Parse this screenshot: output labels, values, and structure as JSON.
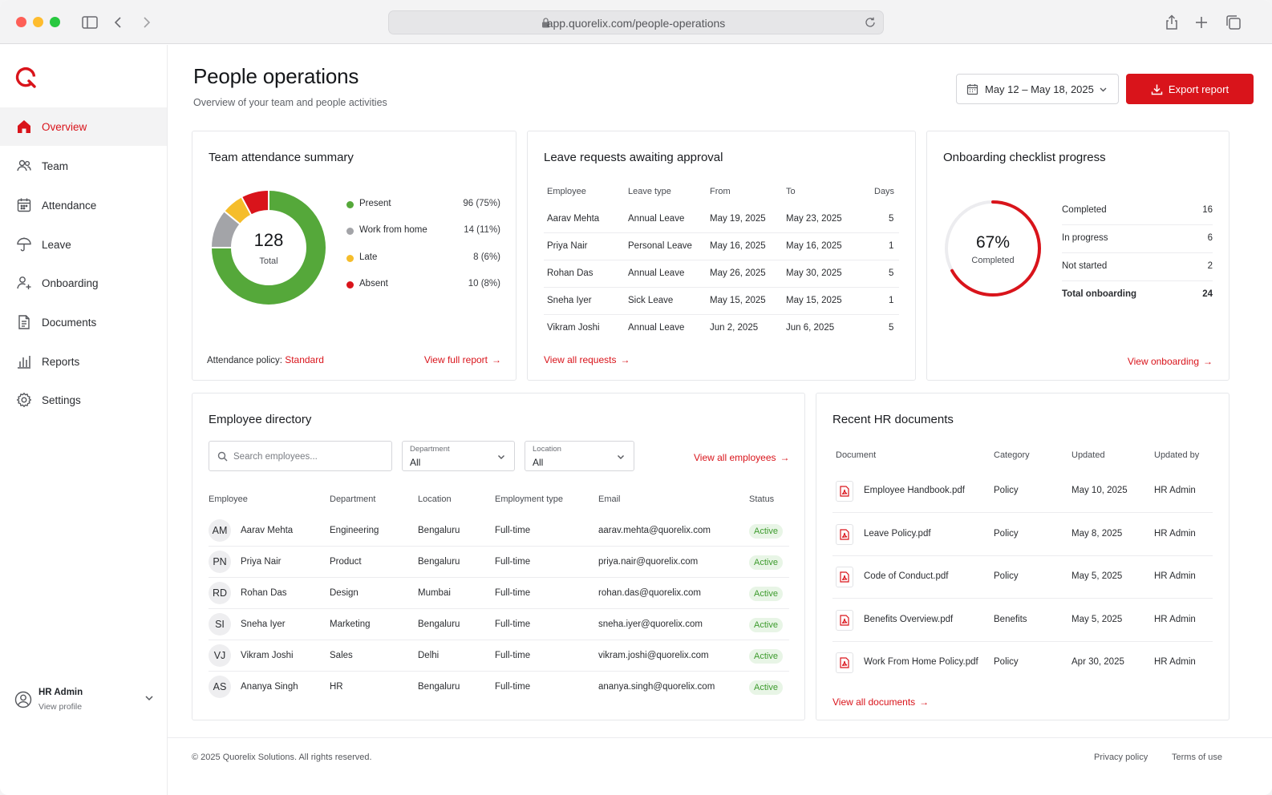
{
  "browser": {
    "url": "app.quorelix.com/people-operations"
  },
  "sidebar": {
    "items": [
      {
        "label": "Overview",
        "icon": "home-icon"
      },
      {
        "label": "Team",
        "icon": "users-icon"
      },
      {
        "label": "Attendance",
        "icon": "calendar-icon"
      },
      {
        "label": "Leave",
        "icon": "umbrella-icon"
      },
      {
        "label": "Onboarding",
        "icon": "user-plus-icon"
      },
      {
        "label": "Documents",
        "icon": "document-icon"
      },
      {
        "label": "Reports",
        "icon": "bar-chart-icon"
      },
      {
        "label": "Settings",
        "icon": "gear-icon"
      }
    ],
    "profile": {
      "name": "HR Admin",
      "sub": "View profile"
    }
  },
  "header": {
    "title": "People operations",
    "subtitle": "Overview of your team and people activities",
    "date_range": "May 12 – May 18, 2025",
    "export_label": "Export report"
  },
  "attendance": {
    "title": "Team attendance summary",
    "total_value": "128",
    "total_label": "Total",
    "legend": [
      {
        "name": "Present",
        "value": "96 (75%)",
        "color": "#55a83a",
        "count": 96
      },
      {
        "name": "Work from home",
        "value": "14 (11%)",
        "color": "#a3a4a8",
        "count": 14
      },
      {
        "name": "Late",
        "value": "8 (6%)",
        "color": "#f5bd2b",
        "count": 8
      },
      {
        "name": "Absent",
        "value": "10 (8%)",
        "color": "#d9141b",
        "count": 10
      }
    ],
    "policy_label": "Attendance policy:",
    "policy_value": "Standard",
    "link": "View full report"
  },
  "leave": {
    "title": "Leave requests awaiting approval",
    "headers": [
      "Employee",
      "Leave type",
      "From",
      "To",
      "Days"
    ],
    "rows": [
      [
        "Aarav Mehta",
        "Annual Leave",
        "May 19, 2025",
        "May 23, 2025",
        "5"
      ],
      [
        "Priya Nair",
        "Personal Leave",
        "May 16, 2025",
        "May 16, 2025",
        "1"
      ],
      [
        "Rohan Das",
        "Annual Leave",
        "May 26, 2025",
        "May 30, 2025",
        "5"
      ],
      [
        "Sneha Iyer",
        "Sick Leave",
        "May 15, 2025",
        "May 15, 2025",
        "1"
      ],
      [
        "Vikram Joshi",
        "Annual Leave",
        "Jun 2, 2025",
        "Jun 6, 2025",
        "5"
      ]
    ],
    "link": "View all requests"
  },
  "onboarding": {
    "title": "Onboarding checklist progress",
    "percent_label": "67%",
    "percent_value": 0.67,
    "percent_caption": "Completed",
    "rows": [
      {
        "label": "Completed",
        "value": "16"
      },
      {
        "label": "In progress",
        "value": "6"
      },
      {
        "label": "Not started",
        "value": "2"
      },
      {
        "label": "Total onboarding",
        "value": "24"
      }
    ],
    "link": "View onboarding"
  },
  "directory": {
    "title": "Employee directory",
    "search_placeholder": "Search employees...",
    "department_label": "Department",
    "department_value": "All",
    "location_label": "Location",
    "location_value": "All",
    "link": "View all employees",
    "headers": [
      "Employee",
      "Department",
      "Location",
      "Employment type",
      "Email",
      "Status"
    ],
    "rows": [
      {
        "initials": "AM",
        "name": "Aarav Mehta",
        "dept": "Engineering",
        "loc": "Bengaluru",
        "type": "Full-time",
        "email": "aarav.mehta@quorelix.com",
        "status": "Active"
      },
      {
        "initials": "PN",
        "name": "Priya Nair",
        "dept": "Product",
        "loc": "Bengaluru",
        "type": "Full-time",
        "email": "priya.nair@quorelix.com",
        "status": "Active"
      },
      {
        "initials": "RD",
        "name": "Rohan Das",
        "dept": "Design",
        "loc": "Mumbai",
        "type": "Full-time",
        "email": "rohan.das@quorelix.com",
        "status": "Active"
      },
      {
        "initials": "SI",
        "name": "Sneha Iyer",
        "dept": "Marketing",
        "loc": "Bengaluru",
        "type": "Full-time",
        "email": "sneha.iyer@quorelix.com",
        "status": "Active"
      },
      {
        "initials": "VJ",
        "name": "Vikram Joshi",
        "dept": "Sales",
        "loc": "Delhi",
        "type": "Full-time",
        "email": "vikram.joshi@quorelix.com",
        "status": "Active"
      },
      {
        "initials": "AS",
        "name": "Ananya Singh",
        "dept": "HR",
        "loc": "Bengaluru",
        "type": "Full-time",
        "email": "ananya.singh@quorelix.com",
        "status": "Active"
      }
    ]
  },
  "documents": {
    "title": "Recent HR documents",
    "headers": [
      "Document",
      "Category",
      "Updated",
      "Updated by"
    ],
    "rows": [
      [
        "Employee Handbook.pdf",
        "Policy",
        "May 10, 2025",
        "HR Admin"
      ],
      [
        "Leave Policy.pdf",
        "Policy",
        "May 8, 2025",
        "HR Admin"
      ],
      [
        "Code of Conduct.pdf",
        "Policy",
        "May 5, 2025",
        "HR Admin"
      ],
      [
        "Benefits Overview.pdf",
        "Benefits",
        "May 5, 2025",
        "HR Admin"
      ],
      [
        "Work From Home Policy.pdf",
        "Policy",
        "Apr 30, 2025",
        "HR Admin"
      ]
    ],
    "link": "View all documents"
  },
  "footer": {
    "copyright": "© 2025 Quorelix Solutions. All rights reserved.",
    "privacy": "Privacy policy",
    "terms": "Terms of use"
  },
  "colors": {
    "accent": "#d9141b",
    "success": "#55a83a"
  }
}
